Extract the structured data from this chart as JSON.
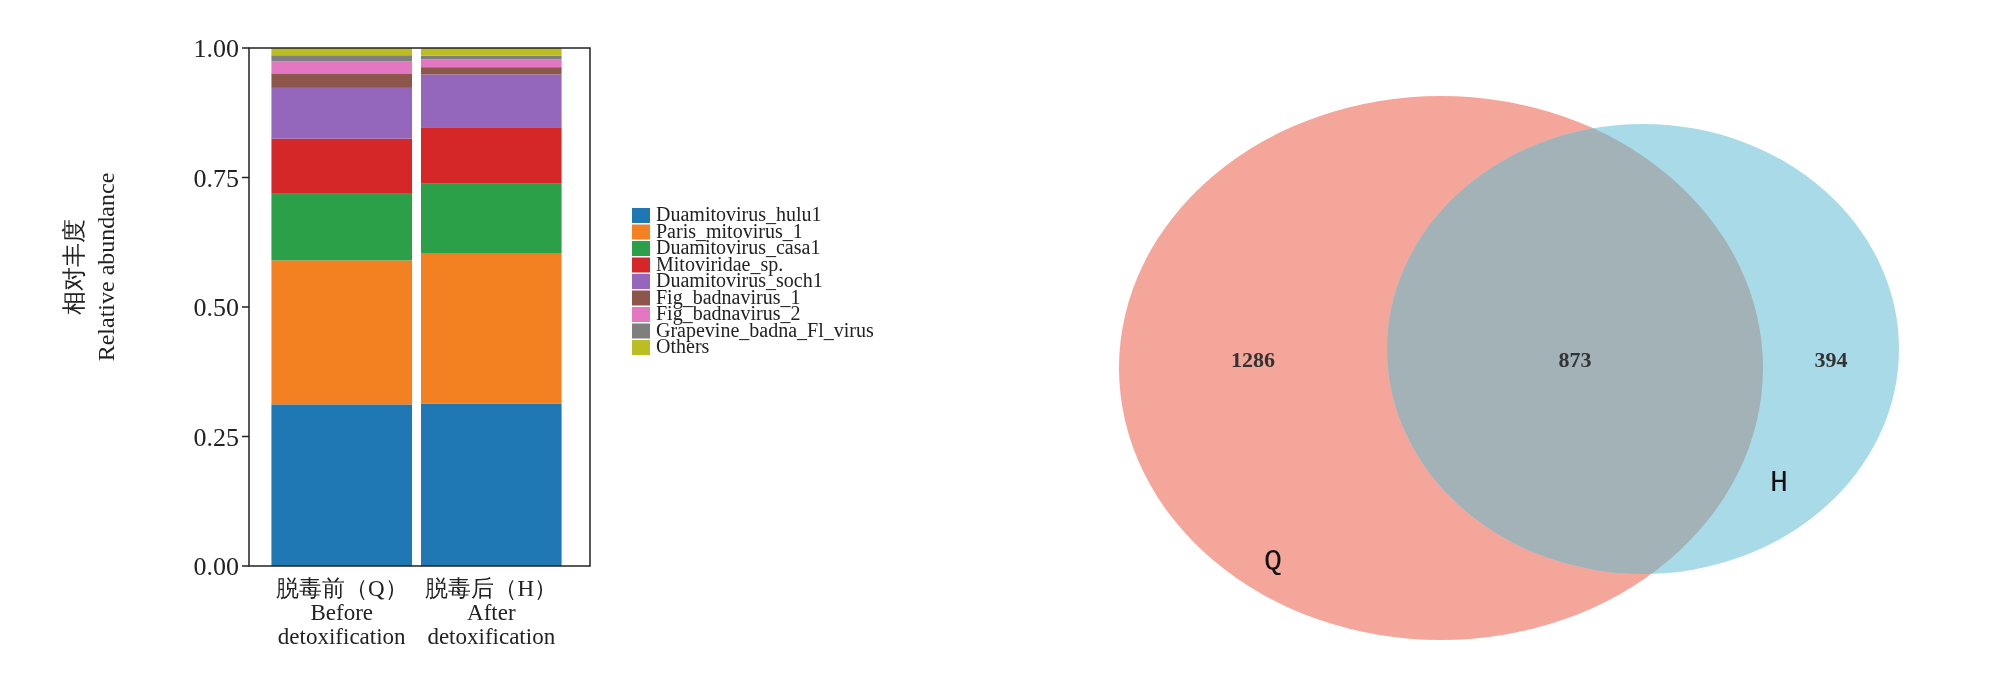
{
  "chart_data": [
    {
      "type": "bar",
      "stacked": true,
      "ylabel": "相对丰度\nRelative abundance",
      "categories": [
        "脱毒前（Q）\nBefore\ndetoxification",
        "脱毒后（H）\nAfter\ndetoxification"
      ],
      "ylim": [
        0,
        1
      ],
      "yticks": [
        {
          "value": 0,
          "label": "0.00"
        },
        {
          "value": 0.25,
          "label": "0.25"
        },
        {
          "value": 0.5,
          "label": "0.50"
        },
        {
          "value": 0.75,
          "label": "0.75"
        },
        {
          "value": 1,
          "label": "1.00"
        }
      ],
      "legend": "right",
      "series": [
        {
          "name": "Duamitovirus_hulu1",
          "color": "#1f77b4",
          "values": [
            0.312,
            0.313
          ]
        },
        {
          "name": "Paris_mitovirus_1",
          "color": "#f38021",
          "values": [
            0.278,
            0.29
          ]
        },
        {
          "name": "Duamitovirus_casa1",
          "color": "#2ca048",
          "values": [
            0.13,
            0.135
          ]
        },
        {
          "name": "Mitoviridae_sp.",
          "color": "#d62728",
          "values": [
            0.105,
            0.109
          ]
        },
        {
          "name": "Duamitovirus_soch1",
          "color": "#9467bd",
          "values": [
            0.098,
            0.102
          ]
        },
        {
          "name": "Fig_badnavirus_1",
          "color": "#8c564b",
          "values": [
            0.028,
            0.014
          ]
        },
        {
          "name": "Fig_badnavirus_2",
          "color": "#e377c2",
          "values": [
            0.023,
            0.015
          ]
        },
        {
          "name": "Grapevine_badna_Fl_virus",
          "color": "#7f7f7f",
          "values": [
            0.012,
            0.007
          ]
        },
        {
          "name": "Others",
          "color": "#bcbd22",
          "values": [
            0.014,
            0.015
          ]
        }
      ]
    },
    {
      "type": "other",
      "values": [
        1286,
        873,
        394
      ],
      "data_labels": true,
      "colors": [
        "#f4a69b",
        "#a2b2b6",
        "#a8dbe7"
      ],
      "annotations": [
        "Q",
        "H"
      ]
    }
  ]
}
